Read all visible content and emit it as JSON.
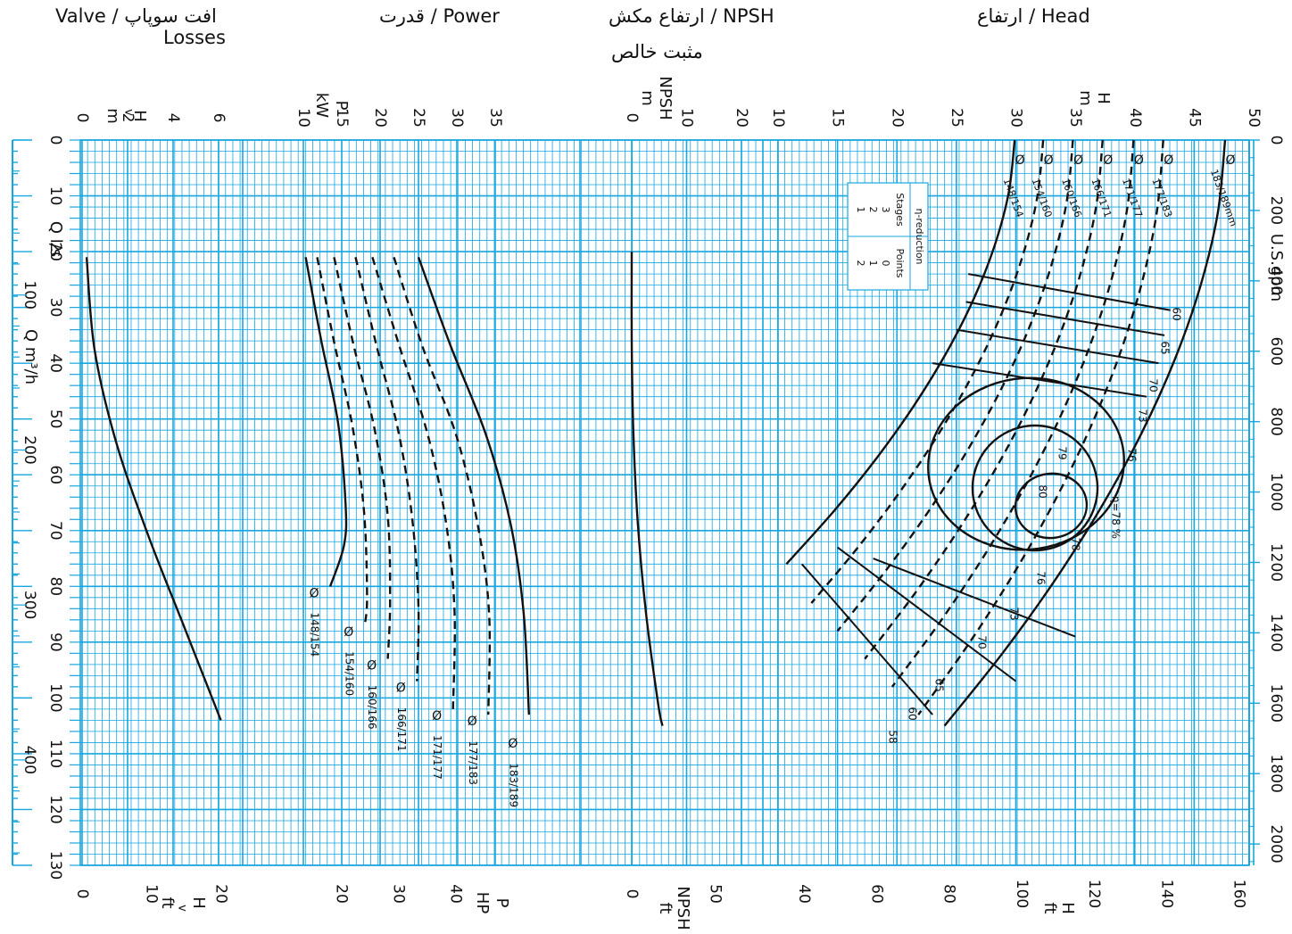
{
  "headers": {
    "valve": {
      "en": "Valve",
      "fa": "افت سوپاپ",
      "en2": "Losses"
    },
    "power": {
      "en": "Power",
      "fa": "قدرت"
    },
    "npsh": {
      "en": "NPSH",
      "fa": "ارتفاع مکش",
      "fa2": "مثبت خالص"
    },
    "head": {
      "en": "Head",
      "fa": "ارتفاع"
    },
    "slash": "/"
  },
  "colors": {
    "grid": "#17a6e0",
    "curve": "#111111"
  },
  "chart_data": {
    "type": "line",
    "orientation": "rotated 90° clockwise (flow axis runs top to bottom)",
    "flow_axes": {
      "ls": {
        "label": "Q l/s",
        "ticks": [
          0,
          10,
          20,
          30,
          40,
          50,
          60,
          70,
          80,
          90,
          100,
          110,
          120,
          130
        ],
        "range": [
          0,
          130
        ]
      },
      "m3h": {
        "label": "Q m³/h",
        "ticks": [
          100,
          200,
          300,
          400
        ]
      },
      "usgpm": {
        "label": "U.S.gpm",
        "ticks": [
          0,
          200,
          400,
          600,
          800,
          1000,
          1200,
          1400,
          1600,
          1800,
          2000
        ]
      }
    },
    "panels": {
      "valve": {
        "top_label": [
          "H",
          "v",
          "m"
        ],
        "top_ticks": [
          0,
          2,
          4,
          6
        ],
        "range_m": [
          0,
          6.5
        ],
        "bottom_label": [
          "H",
          "v",
          "ft"
        ],
        "bottom_ticks": [
          0,
          10,
          20
        ]
      },
      "power": {
        "top_label": [
          "P",
          "kW"
        ],
        "top_ticks": [
          10,
          15,
          20,
          25,
          30,
          35
        ],
        "range_kw": [
          10,
          37
        ],
        "bottom_label": [
          "P",
          "HP"
        ],
        "bottom_ticks": [
          20,
          30,
          40
        ]
      },
      "npsh": {
        "top_label": [
          "NPSH",
          "m"
        ],
        "top_ticks": [
          0,
          10,
          20
        ],
        "range_m": [
          0,
          23
        ],
        "bottom_label": [
          "NPSH",
          "ft"
        ],
        "bottom_ticks": [
          0,
          50
        ]
      },
      "head": {
        "top_label": [
          "H",
          "m"
        ],
        "top_ticks": [
          10,
          15,
          20,
          25,
          30,
          35,
          40,
          45,
          50
        ],
        "range_m": [
          10,
          50
        ],
        "bottom_label": [
          "H",
          "ft"
        ],
        "bottom_ticks": [
          40,
          60,
          80,
          100,
          120,
          140,
          160
        ]
      }
    },
    "valve_curve": [
      [
        0,
        0.2
      ],
      [
        20,
        0.55
      ],
      [
        40,
        1.5
      ],
      [
        60,
        2.9
      ],
      [
        80,
        4.5
      ],
      [
        100,
        6.1
      ]
    ],
    "power_curves": [
      {
        "name": "Ø148/154",
        "dashed": false,
        "points": [
          [
            0,
            10.3
          ],
          [
            20,
            12.3
          ],
          [
            40,
            14.5
          ],
          [
            60,
            15.5
          ],
          [
            70,
            15.3
          ],
          [
            80,
            13.5
          ]
        ],
        "label_q": 80,
        "label": [
          "Ø",
          "148/154"
        ]
      },
      {
        "name": "Ø154/160",
        "dashed": true,
        "points": [
          [
            0,
            11.8
          ],
          [
            20,
            14.0
          ],
          [
            40,
            16.4
          ],
          [
            60,
            17.9
          ],
          [
            80,
            18.3
          ],
          [
            87,
            18.0
          ]
        ],
        "label_q": 87,
        "label": [
          "Ø",
          "154/160"
        ]
      },
      {
        "name": "Ø160/166",
        "dashed": true,
        "points": [
          [
            0,
            14.0
          ],
          [
            20,
            16.5
          ],
          [
            40,
            19.3
          ],
          [
            60,
            21.0
          ],
          [
            80,
            21.3
          ],
          [
            93,
            21.0
          ]
        ],
        "label_q": 93,
        "label": [
          "Ø",
          "160/166"
        ]
      },
      {
        "name": "Ø166/171",
        "dashed": true,
        "points": [
          [
            0,
            16.8
          ],
          [
            20,
            19.5
          ],
          [
            40,
            22.4
          ],
          [
            60,
            24.2
          ],
          [
            80,
            25.0
          ],
          [
            97,
            24.8
          ]
        ],
        "label_q": 97,
        "label": [
          "Ø",
          "166/171"
        ]
      },
      {
        "name": "Ø171/177",
        "dashed": true,
        "points": [
          [
            0,
            19.0
          ],
          [
            20,
            22.5
          ],
          [
            40,
            26.2
          ],
          [
            60,
            28.6
          ],
          [
            80,
            29.7
          ],
          [
            102,
            29.5
          ]
        ],
        "label_q": 102,
        "label": [
          "Ø",
          "171/177"
        ]
      },
      {
        "name": "Ø177/183",
        "dashed": true,
        "points": [
          [
            0,
            21.8
          ],
          [
            20,
            25.5
          ],
          [
            40,
            29.9
          ],
          [
            60,
            32.7
          ],
          [
            80,
            34.2
          ],
          [
            103,
            34.1
          ]
        ],
        "label_q": 103,
        "label": [
          "Ø",
          "177/183"
        ]
      },
      {
        "name": "Ø183/189",
        "dashed": false,
        "points": [
          [
            0,
            25.0
          ],
          [
            20,
            29.2
          ],
          [
            40,
            33.8
          ],
          [
            60,
            37.0
          ],
          [
            80,
            38.7
          ],
          [
            103,
            39.4
          ]
        ],
        "label_q": 107,
        "label": [
          "Ø",
          "183/189"
        ]
      }
    ],
    "npsh_curve": [
      [
        0,
        0
      ],
      [
        20,
        0.0
      ],
      [
        40,
        0.3
      ],
      [
        60,
        1.1
      ],
      [
        80,
        2.6
      ],
      [
        100,
        4.8
      ],
      [
        105,
        5.6
      ]
    ],
    "head_curves": [
      {
        "name": "Ø148/154",
        "dashed": false,
        "label": [
          "Ø",
          "148/154"
        ]
      },
      {
        "name": "Ø154/160",
        "dashed": true,
        "label": [
          "Ø",
          "154/160"
        ]
      },
      {
        "name": "Ø160/166",
        "dashed": true,
        "label": [
          "Ø",
          "160/166"
        ]
      },
      {
        "name": "Ø166/171",
        "dashed": true,
        "label": [
          "Ø",
          "166/171"
        ]
      },
      {
        "name": "Ø171/177",
        "dashed": true,
        "label": [
          "Ø",
          "171/177"
        ]
      },
      {
        "name": "Ø177/183",
        "dashed": true,
        "label": [
          "Ø",
          "177/183"
        ]
      },
      {
        "name": "Ø183/189",
        "dashed": false,
        "label": [
          "Ø",
          "183/189mm"
        ]
      }
    ],
    "head_at_zero_flow": [
      29.9,
      32.3,
      34.8,
      37.3,
      39.9,
      42.4,
      47.6
    ],
    "head_at_end_flow": [
      [
        80,
        14.0
      ],
      [
        85,
        16.2
      ],
      [
        90,
        18.5
      ],
      [
        95,
        20.8
      ],
      [
        100,
        23.0
      ],
      [
        105,
        24.5
      ]
    ],
    "efficiency_labels": [
      "58",
      "60",
      "65",
      "70",
      "73",
      "76",
      "78",
      "79",
      "80",
      "η=78 %"
    ],
    "efficiency_contour_labels": [
      "60",
      "65",
      "70",
      "73",
      "76"
    ],
    "reduction_table": {
      "title": "η-reduction",
      "headers": [
        "Stages",
        "Points"
      ],
      "rows": [
        [
          "3",
          "0"
        ],
        [
          "2",
          "1"
        ],
        [
          "1",
          "2"
        ]
      ]
    },
    "grid": true
  }
}
